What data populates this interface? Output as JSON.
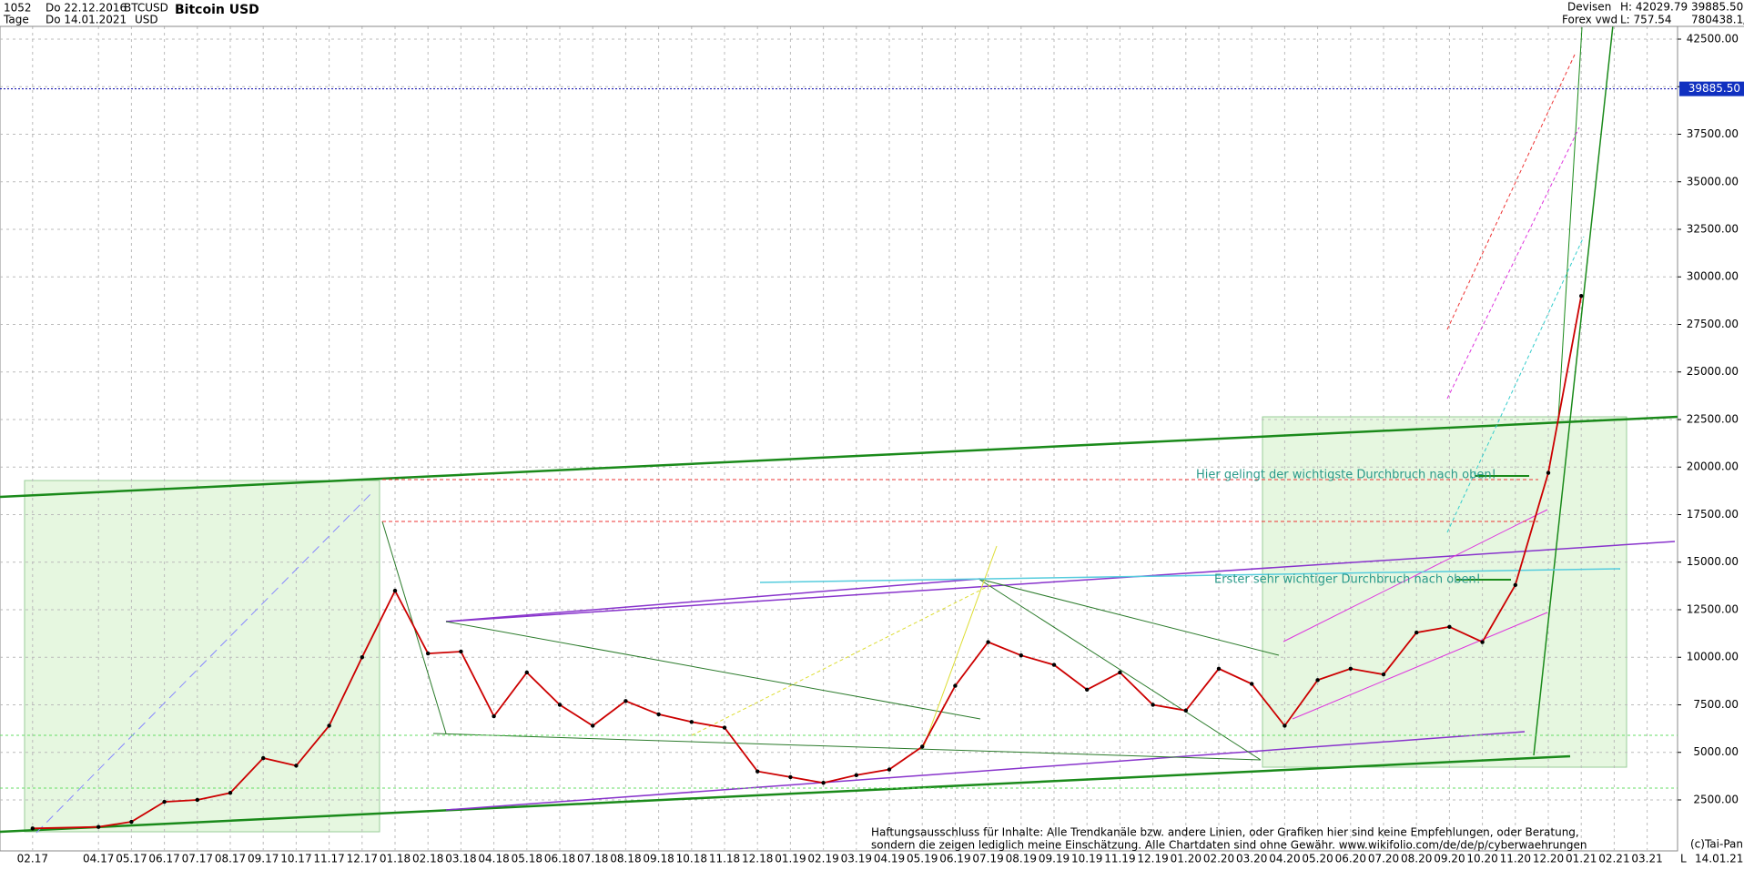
{
  "header": {
    "bars": "1052",
    "period": "Tage",
    "from": "Do 22.12.2016",
    "to": "Do 14.01.2021",
    "symbol": "BTCUSD",
    "currency": "USD",
    "market": "Devisen",
    "source": "Forex vwd",
    "high": "H: 42029.79",
    "low": "L: 757.54",
    "last": "39885.50",
    "volume": "780438.1/"
  },
  "footer": {
    "disclaimer": [
      "Haftungsausschluss für Inhalte: Alle Trendkanäle bzw. andere Linien, oder Grafiken hier sind keine Empfehlungen, oder Beratung,",
      "sondern die zeigen lediglich meine  Einschätzung. Alle Chartdaten sind ohne Gewähr.  www.wikifolio.com/de/de/p/cyberwaehrungen"
    ],
    "copyright": "(c)Tai-Pan",
    "scale": "L",
    "date": "14.01.21"
  },
  "chart_data": {
    "type": "line",
    "title": "Bitcoin USD",
    "categories": [
      "02.17",
      "04.17",
      "05.17",
      "06.17",
      "07.17",
      "08.17",
      "09.17",
      "10.17",
      "11.17",
      "12.17",
      "01.18",
      "02.18",
      "03.18",
      "04.18",
      "05.18",
      "06.18",
      "07.18",
      "08.18",
      "09.18",
      "10.18",
      "11.18",
      "12.18",
      "01.19",
      "02.19",
      "03.19",
      "04.19",
      "05.19",
      "06.19",
      "07.19",
      "08.19",
      "09.19",
      "10.19",
      "11.19",
      "12.19",
      "01.20",
      "02.20",
      "03.20",
      "04.20",
      "05.20",
      "06.20",
      "07.20",
      "08.20",
      "09.20",
      "10.20",
      "11.20",
      "12.20",
      "01.21",
      "02.21",
      "03.21"
    ],
    "values": [
      1000,
      1080,
      1350,
      2400,
      2500,
      2870,
      4700,
      4300,
      6400,
      10000,
      13500,
      10200,
      10300,
      6900,
      9200,
      7500,
      6400,
      7700,
      7000,
      6600,
      6300,
      4000,
      3700,
      3400,
      3800,
      4100,
      5300,
      8500,
      10800,
      10100,
      9600,
      8300,
      9200,
      7500,
      7200,
      9400,
      8600,
      6400,
      8800,
      9400,
      9100,
      11300,
      11600,
      10800,
      13800,
      19700,
      29000,
      null,
      null
    ],
    "color": "#cc0000",
    "ylim": [
      -180,
      43170
    ],
    "yticks": [
      {
        "value": 2500,
        "label": "2500.00"
      },
      {
        "value": 5000,
        "label": "5000.00"
      },
      {
        "value": 7500,
        "label": "7500.00"
      },
      {
        "value": 10000,
        "label": "10000.00"
      },
      {
        "value": 12500,
        "label": "12500.00"
      },
      {
        "value": 15000,
        "label": "15000.00"
      },
      {
        "value": 17500,
        "label": "17500.00"
      },
      {
        "value": 20000,
        "label": "20000.00"
      },
      {
        "value": 22500,
        "label": "22500.00"
      },
      {
        "value": 25000,
        "label": "25000.00"
      },
      {
        "value": 27500,
        "label": "27500.00"
      },
      {
        "value": 30000,
        "label": "30000.00"
      },
      {
        "value": 32500,
        "label": "32500.00"
      },
      {
        "value": 35000,
        "label": "35000.00"
      },
      {
        "value": 37500,
        "label": "37500.00"
      },
      {
        "value": 40000,
        "label": "40000.00"
      },
      {
        "value": 42500,
        "label": "42500.00"
      }
    ],
    "current_price": {
      "value": 39885.5,
      "label": "39885.50"
    },
    "grid": true,
    "annotations": [
      "Hier gelingt der wichtigste Durchbruch nach oben!",
      "Erster sehr wichtiger Durchbruch nach oben!"
    ]
  }
}
